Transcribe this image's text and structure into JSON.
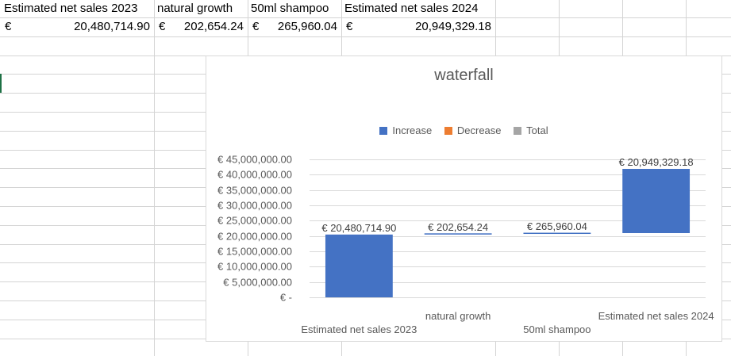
{
  "sheet": {
    "headers": [
      "Estimated net sales 2023",
      "natural growth",
      "50ml shampoo",
      "Estimated net sales 2024"
    ],
    "values": [
      {
        "currency": "€",
        "amount": "20,480,714.90"
      },
      {
        "currency": "€",
        "amount": "202,654.24"
      },
      {
        "currency": "€",
        "amount": "265,960.04"
      },
      {
        "currency": "€",
        "amount": "20,949,329.18"
      }
    ]
  },
  "colors": {
    "increase": "#4472c4",
    "decrease": "#ed7d31",
    "total": "#a5a5a5",
    "selection": "#1e7145"
  },
  "chart_data": {
    "type": "bar",
    "subtype": "waterfall",
    "title": "waterfall",
    "legend": {
      "position": "top",
      "entries": [
        "Increase",
        "Decrease",
        "Total"
      ]
    },
    "categories": [
      "Estimated net sales 2023",
      "natural growth",
      "50ml shampoo",
      "Estimated net sales 2024"
    ],
    "series": [
      {
        "name": "Increase",
        "base": [
          0,
          20480714.9,
          20683369.14,
          20949329.18
        ],
        "values": [
          20480714.9,
          202654.24,
          265960.04,
          20949329.18
        ]
      }
    ],
    "data_labels": [
      "€ 20,480,714.90",
      "€ 202,654.24",
      "€ 265,960.04",
      "€ 20,949,329.18"
    ],
    "ylim": [
      0,
      45000000
    ],
    "yticks": [
      0,
      5000000,
      10000000,
      15000000,
      20000000,
      25000000,
      30000000,
      35000000,
      40000000,
      45000000
    ],
    "ytick_labels": [
      "€ -",
      "€ 5,000,000.00",
      "€ 10,000,000.00",
      "€ 15,000,000.00",
      "€ 20,000,000.00",
      "€ 25,000,000.00",
      "€ 30,000,000.00",
      "€ 35,000,000.00",
      "€ 40,000,000.00",
      "€ 45,000,000.00"
    ],
    "grid": true,
    "xlabel": "",
    "ylabel": ""
  }
}
